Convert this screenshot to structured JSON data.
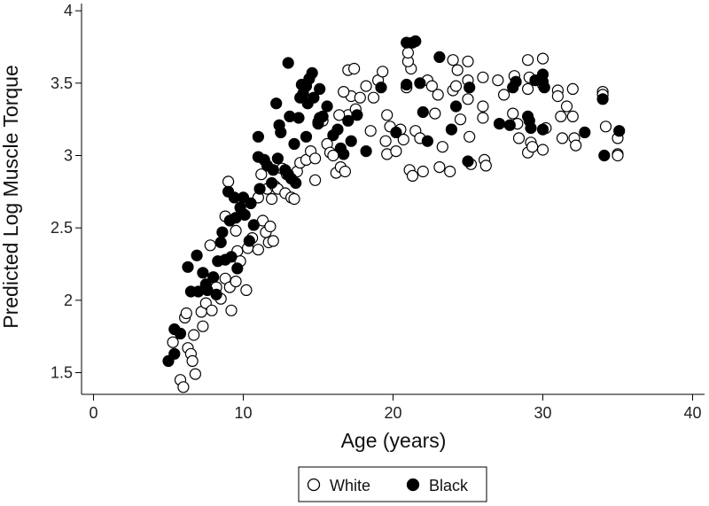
{
  "chart_data": {
    "type": "scatter",
    "title": "",
    "xlabel": "Age (years)",
    "ylabel": "Predicted Log Muscle Torque",
    "xlim": [
      -0.8,
      40.8
    ],
    "ylim": [
      1.35,
      4.05
    ],
    "xticks": [
      "0",
      "10",
      "20",
      "30",
      "40"
    ],
    "xtick_values": [
      0,
      10,
      20,
      30,
      40
    ],
    "yticks": [
      "1.5",
      "2",
      "2.5",
      "3",
      "3.5",
      "4"
    ],
    "ytick_values": [
      1.5,
      2,
      2.5,
      3,
      3.5,
      4
    ],
    "grid": false,
    "legend_position": "bottom-center",
    "series": [
      {
        "name": "White",
        "marker": "open-circle",
        "color": "#000000",
        "points": [
          [
            5.3,
            1.71
          ],
          [
            5.8,
            1.45
          ],
          [
            6.0,
            1.4
          ],
          [
            6.1,
            1.88
          ],
          [
            6.3,
            1.67
          ],
          [
            6.5,
            1.63
          ],
          [
            6.6,
            1.58
          ],
          [
            6.7,
            1.76
          ],
          [
            6.8,
            1.49
          ],
          [
            6.2,
            1.91
          ],
          [
            7.2,
            1.92
          ],
          [
            7.5,
            1.98
          ],
          [
            7.3,
            1.82
          ],
          [
            7.8,
            2.38
          ],
          [
            7.9,
            1.93
          ],
          [
            8.2,
            2.09
          ],
          [
            8.5,
            2.01
          ],
          [
            8.8,
            2.15
          ],
          [
            8.8,
            2.58
          ],
          [
            9.0,
            2.82
          ],
          [
            9.1,
            2.09
          ],
          [
            9.2,
            1.93
          ],
          [
            9.5,
            2.13
          ],
          [
            9.6,
            2.34
          ],
          [
            9.8,
            2.27
          ],
          [
            9.5,
            2.48
          ],
          [
            10.2,
            2.07
          ],
          [
            10.3,
            2.36
          ],
          [
            10.6,
            2.43
          ],
          [
            11.0,
            2.35
          ],
          [
            11.3,
            2.55
          ],
          [
            11.5,
            2.47
          ],
          [
            11.7,
            2.4
          ],
          [
            11.8,
            2.51
          ],
          [
            12.0,
            2.41
          ],
          [
            11.0,
            2.71
          ],
          [
            11.2,
            2.87
          ],
          [
            11.6,
            2.77
          ],
          [
            11.9,
            2.7
          ],
          [
            12.1,
            2.79
          ],
          [
            12.3,
            2.77
          ],
          [
            12.6,
            2.91
          ],
          [
            12.8,
            2.74
          ],
          [
            12.9,
            2.87
          ],
          [
            13.2,
            2.71
          ],
          [
            13.4,
            2.7
          ],
          [
            13.6,
            2.89
          ],
          [
            13.8,
            2.95
          ],
          [
            14.2,
            2.97
          ],
          [
            14.5,
            3.03
          ],
          [
            14.8,
            2.98
          ],
          [
            14.8,
            2.83
          ],
          [
            15.0,
            3.23
          ],
          [
            15.3,
            3.24
          ],
          [
            15.6,
            3.08
          ],
          [
            15.8,
            3.02
          ],
          [
            16.0,
            3.0
          ],
          [
            16.2,
            2.88
          ],
          [
            16.5,
            2.92
          ],
          [
            16.8,
            2.89
          ],
          [
            17.0,
            3.28
          ],
          [
            17.2,
            3.41
          ],
          [
            17.5,
            3.32
          ],
          [
            16.4,
            3.28
          ],
          [
            16.7,
            3.44
          ],
          [
            17.0,
            3.59
          ],
          [
            17.4,
            3.6
          ],
          [
            17.8,
            3.4
          ],
          [
            18.2,
            3.48
          ],
          [
            18.5,
            3.17
          ],
          [
            18.7,
            3.4
          ],
          [
            19.0,
            3.52
          ],
          [
            19.3,
            3.58
          ],
          [
            19.6,
            3.28
          ],
          [
            19.6,
            3.01
          ],
          [
            19.5,
            3.1
          ],
          [
            19.8,
            3.2
          ],
          [
            20.2,
            3.03
          ],
          [
            20.5,
            3.18
          ],
          [
            20.7,
            3.11
          ],
          [
            20.9,
            3.47
          ],
          [
            21.2,
            3.6
          ],
          [
            21.0,
            3.65
          ],
          [
            21.0,
            3.71
          ],
          [
            21.1,
            2.9
          ],
          [
            21.3,
            2.86
          ],
          [
            21.5,
            3.17
          ],
          [
            21.8,
            3.12
          ],
          [
            22.0,
            2.89
          ],
          [
            22.3,
            3.52
          ],
          [
            22.6,
            3.48
          ],
          [
            23.0,
            3.42
          ],
          [
            22.8,
            3.29
          ],
          [
            23.1,
            2.92
          ],
          [
            23.3,
            3.06
          ],
          [
            23.8,
            2.89
          ],
          [
            24.0,
            3.66
          ],
          [
            24.3,
            3.59
          ],
          [
            24.0,
            3.45
          ],
          [
            24.5,
            3.25
          ],
          [
            24.2,
            3.48
          ],
          [
            25.0,
            3.65
          ],
          [
            25.0,
            3.52
          ],
          [
            25.0,
            3.39
          ],
          [
            25.1,
            3.13
          ],
          [
            25.2,
            2.94
          ],
          [
            26.0,
            3.54
          ],
          [
            26.0,
            3.34
          ],
          [
            26.0,
            3.26
          ],
          [
            26.1,
            2.97
          ],
          [
            26.2,
            2.93
          ],
          [
            27.0,
            3.52
          ],
          [
            27.4,
            3.42
          ],
          [
            28.1,
            3.55
          ],
          [
            28.0,
            3.29
          ],
          [
            28.3,
            3.22
          ],
          [
            28.4,
            3.12
          ],
          [
            29.0,
            3.66
          ],
          [
            29.1,
            3.54
          ],
          [
            29.0,
            3.46
          ],
          [
            29.2,
            3.09
          ],
          [
            29.0,
            3.02
          ],
          [
            29.3,
            3.06
          ],
          [
            30.0,
            3.67
          ],
          [
            30.0,
            3.49
          ],
          [
            30.2,
            3.19
          ],
          [
            30.0,
            3.04
          ],
          [
            31.0,
            3.45
          ],
          [
            31.0,
            3.41
          ],
          [
            31.2,
            3.27
          ],
          [
            31.3,
            3.12
          ],
          [
            31.6,
            3.34
          ],
          [
            32.0,
            3.46
          ],
          [
            32.0,
            3.27
          ],
          [
            32.1,
            3.12
          ],
          [
            32.2,
            3.07
          ],
          [
            34.0,
            3.44
          ],
          [
            34.0,
            3.42
          ],
          [
            34.2,
            3.2
          ],
          [
            35.0,
            3.12
          ],
          [
            35.0,
            3.01
          ],
          [
            35.0,
            3.0
          ]
        ]
      },
      {
        "name": "Black",
        "marker": "filled-circle",
        "color": "#000000",
        "points": [
          [
            5.0,
            1.58
          ],
          [
            5.4,
            1.8
          ],
          [
            5.8,
            1.77
          ],
          [
            5.4,
            1.63
          ],
          [
            6.3,
            2.23
          ],
          [
            6.5,
            2.06
          ],
          [
            6.9,
            2.31
          ],
          [
            7.0,
            2.06
          ],
          [
            7.3,
            2.19
          ],
          [
            7.5,
            2.11
          ],
          [
            7.6,
            2.07
          ],
          [
            8.0,
            2.16
          ],
          [
            8.2,
            2.04
          ],
          [
            8.3,
            2.27
          ],
          [
            8.5,
            2.4
          ],
          [
            8.8,
            2.28
          ],
          [
            8.6,
            2.47
          ],
          [
            9.0,
            2.75
          ],
          [
            9.2,
            2.3
          ],
          [
            9.6,
            2.22
          ],
          [
            9.1,
            2.55
          ],
          [
            9.5,
            2.57
          ],
          [
            9.8,
            2.64
          ],
          [
            10.0,
            2.71
          ],
          [
            9.4,
            2.71
          ],
          [
            10.1,
            2.59
          ],
          [
            10.5,
            2.67
          ],
          [
            10.7,
            2.52
          ],
          [
            10.4,
            2.41
          ],
          [
            11.0,
            3.13
          ],
          [
            11.0,
            2.99
          ],
          [
            11.4,
            2.97
          ],
          [
            11.1,
            2.77
          ],
          [
            11.6,
            2.93
          ],
          [
            11.9,
            2.81
          ],
          [
            12.0,
            2.9
          ],
          [
            12.4,
            3.21
          ],
          [
            12.2,
            3.36
          ],
          [
            12.5,
            3.16
          ],
          [
            12.3,
            2.98
          ],
          [
            12.8,
            2.9
          ],
          [
            13.0,
            2.87
          ],
          [
            13.1,
            3.27
          ],
          [
            13.2,
            2.84
          ],
          [
            13.5,
            2.81
          ],
          [
            13.0,
            3.64
          ],
          [
            13.4,
            3.08
          ],
          [
            13.7,
            3.26
          ],
          [
            13.8,
            3.4
          ],
          [
            14.0,
            3.43
          ],
          [
            13.9,
            3.49
          ],
          [
            14.2,
            3.48
          ],
          [
            14.4,
            3.53
          ],
          [
            14.6,
            3.57
          ],
          [
            14.3,
            3.36
          ],
          [
            14.2,
            3.13
          ],
          [
            15.0,
            3.22
          ],
          [
            15.1,
            3.46
          ],
          [
            14.7,
            3.4
          ],
          [
            15.1,
            3.26
          ],
          [
            15.3,
            3.27
          ],
          [
            15.6,
            3.34
          ],
          [
            16.0,
            3.14
          ],
          [
            16.3,
            3.18
          ],
          [
            16.7,
            3.01
          ],
          [
            16.5,
            3.05
          ],
          [
            17.0,
            3.24
          ],
          [
            17.2,
            3.1
          ],
          [
            17.6,
            3.28
          ],
          [
            18.2,
            3.03
          ],
          [
            19.2,
            3.47
          ],
          [
            20.2,
            3.16
          ],
          [
            20.9,
            3.49
          ],
          [
            20.9,
            3.78
          ],
          [
            21.3,
            3.78
          ],
          [
            21.5,
            3.79
          ],
          [
            21.8,
            3.5
          ],
          [
            22.0,
            3.3
          ],
          [
            22.3,
            3.1
          ],
          [
            23.1,
            3.68
          ],
          [
            23.9,
            3.18
          ],
          [
            24.2,
            3.34
          ],
          [
            25.0,
            2.96
          ],
          [
            25.1,
            3.47
          ],
          [
            27.1,
            3.22
          ],
          [
            27.8,
            3.21
          ],
          [
            28.0,
            3.47
          ],
          [
            28.2,
            3.51
          ],
          [
            29.0,
            3.27
          ],
          [
            29.1,
            3.24
          ],
          [
            29.2,
            3.19
          ],
          [
            29.5,
            3.52
          ],
          [
            30.0,
            3.56
          ],
          [
            30.0,
            3.51
          ],
          [
            30.1,
            3.47
          ],
          [
            30.0,
            3.18
          ],
          [
            32.8,
            3.16
          ],
          [
            34.0,
            3.39
          ],
          [
            34.1,
            3.0
          ],
          [
            35.1,
            3.17
          ]
        ]
      }
    ]
  }
}
